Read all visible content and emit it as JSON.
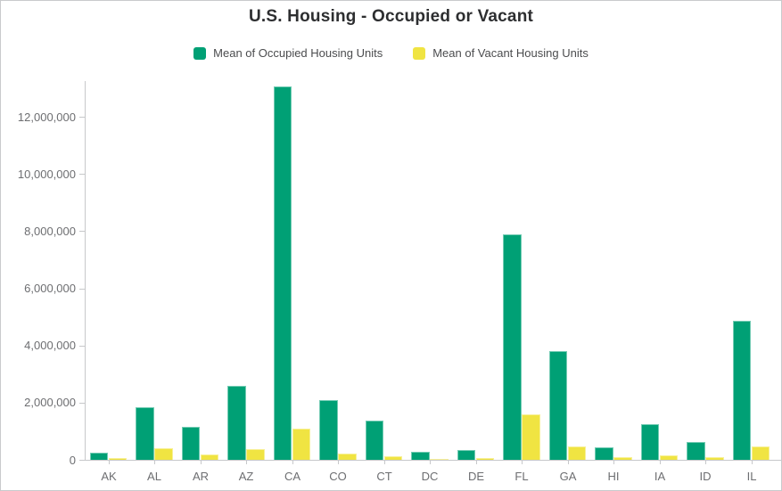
{
  "title": "U.S. Housing - Occupied or Vacant",
  "colors": {
    "occupied": "#00A075",
    "vacant": "#F0E442",
    "title_text": "#2D2E30",
    "axis_text": "#6D6E71",
    "axis_line": "#C7C8CA",
    "frame_border": "#C9CACC"
  },
  "chart_data": {
    "type": "bar",
    "title": "U.S. Housing - Occupied or Vacant",
    "categories": [
      "AK",
      "AL",
      "AR",
      "AZ",
      "CA",
      "CO",
      "CT",
      "DC",
      "DE",
      "FL",
      "GA",
      "HI",
      "IA",
      "ID",
      "IL"
    ],
    "series": [
      {
        "name": "Mean of Occupied Housing Units",
        "color": "#00A075",
        "values": [
          250000,
          1850000,
          1150000,
          2600000,
          13050000,
          2100000,
          1360000,
          270000,
          350000,
          7900000,
          3800000,
          450000,
          1250000,
          620000,
          4850000
        ]
      },
      {
        "name": "Mean of Vacant Housing Units",
        "color": "#F0E442",
        "values": [
          60000,
          400000,
          200000,
          380000,
          1090000,
          210000,
          110000,
          30000,
          70000,
          1600000,
          470000,
          100000,
          150000,
          90000,
          460000
        ]
      }
    ],
    "xlabel": "",
    "ylabel": "",
    "ylim": [
      0,
      13250000
    ],
    "y_tick_step": 2000000,
    "y_tick_labels": [
      "0",
      "2,000,000",
      "4,000,000",
      "6,000,000",
      "8,000,000",
      "10,000,000",
      "12,000,000"
    ],
    "grid": false,
    "legend_position": "top"
  }
}
